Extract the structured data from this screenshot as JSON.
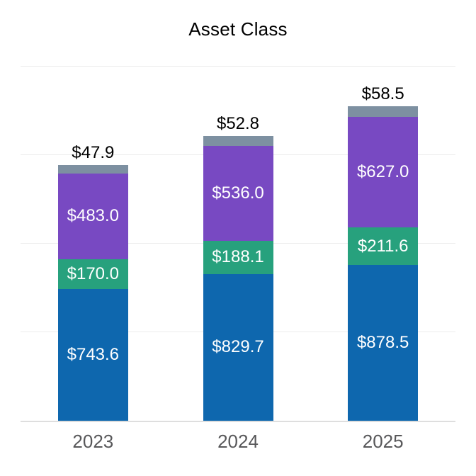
{
  "chart_data": {
    "type": "bar",
    "subtype": "stacked-vertical",
    "title": "Asset Class",
    "categories": [
      "2023",
      "2024",
      "2025"
    ],
    "series": [
      {
        "color": "#0e67ae",
        "values": [
          743.6,
          829.7,
          878.5
        ],
        "label_placement": "inside",
        "label_color": "#ffffff"
      },
      {
        "color": "#27a17d",
        "values": [
          170.0,
          188.1,
          211.6
        ],
        "label_placement": "inside",
        "label_color": "#ffffff"
      },
      {
        "color": "#7849c2",
        "values": [
          483.0,
          536.0,
          627.0
        ],
        "label_placement": "inside",
        "label_color": "#ffffff"
      },
      {
        "color": "#7d90a1",
        "values": [
          47.9,
          52.8,
          58.5
        ],
        "label_placement": "above",
        "label_color": "#000000"
      }
    ],
    "value_prefix": "$",
    "value_decimals": 1,
    "ylim": [
      0,
      2000
    ],
    "gridline_values": [
      500,
      1000,
      1500,
      2000
    ],
    "legend_position": "none",
    "axis_tick_labels_y": "none",
    "colors": {
      "gridline": "#ececec",
      "axis_line": "#dedede",
      "x_label": "#58585a",
      "title": "#000000",
      "background": "#ffffff"
    }
  }
}
